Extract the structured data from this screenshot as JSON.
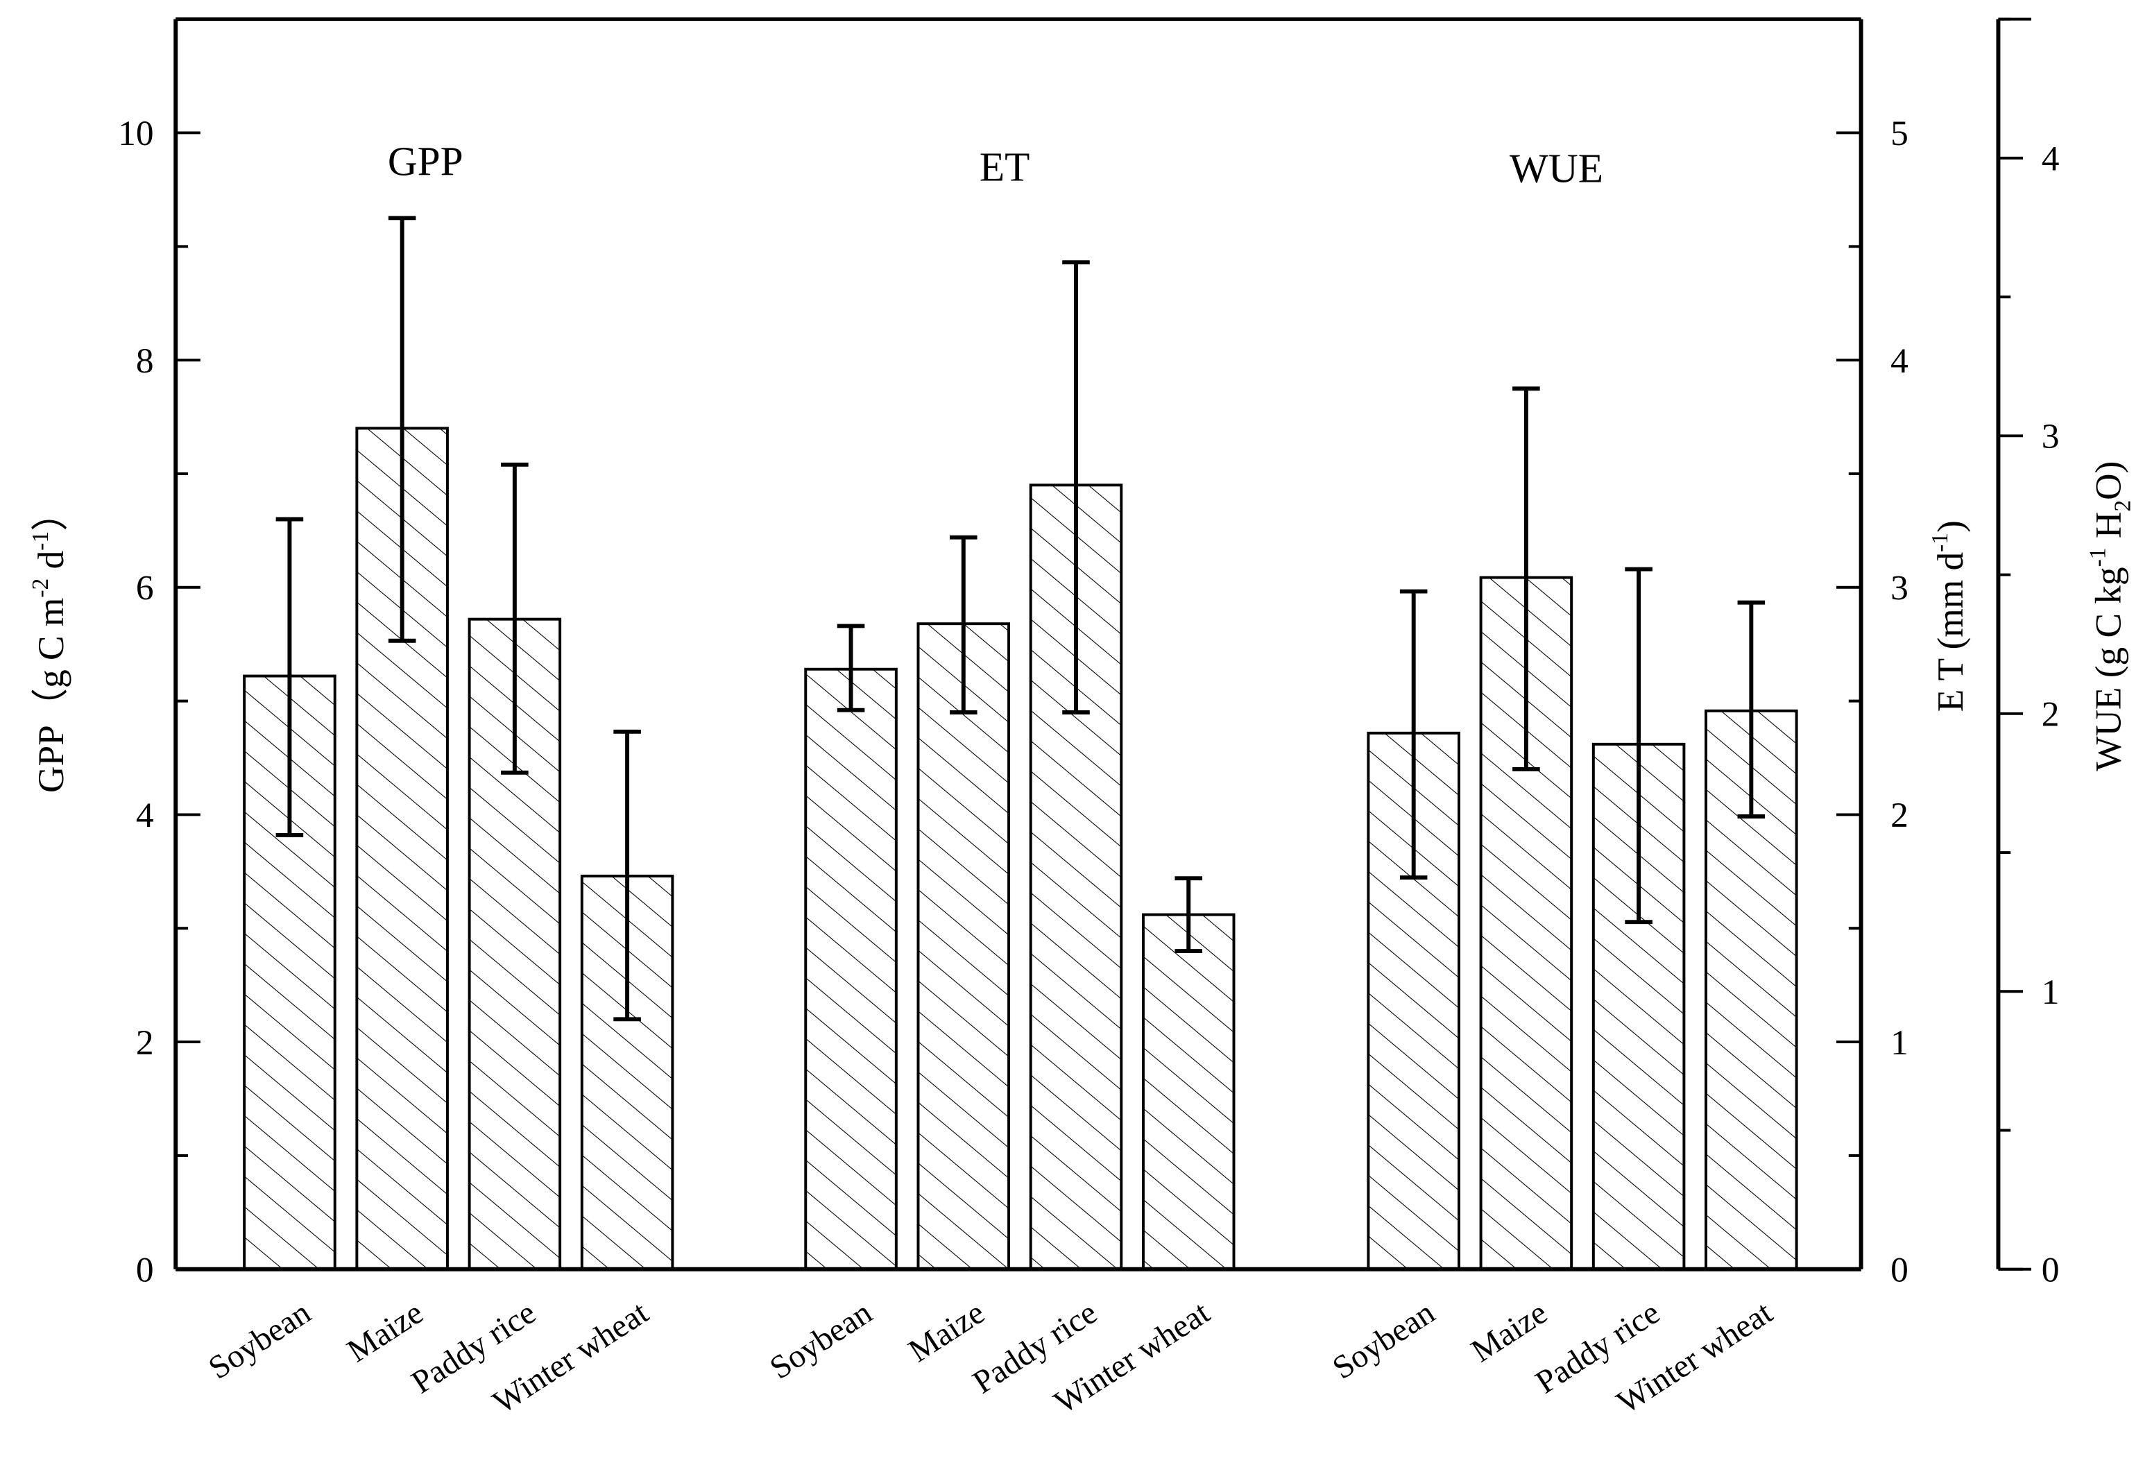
{
  "chart_data": {
    "type": "bar",
    "groups": [
      {
        "label": "GPP",
        "axis": "left",
        "categories": [
          "Soybean",
          "Maize",
          "Paddy rice",
          "Winter wheat"
        ],
        "values": [
          5.22,
          7.4,
          5.72,
          3.46
        ],
        "err_low": [
          3.82,
          5.53,
          4.37,
          2.2
        ],
        "err_high": [
          6.6,
          9.25,
          7.08,
          4.73
        ]
      },
      {
        "label": "ET",
        "axis": "right1",
        "categories": [
          "Soybean",
          "Maize",
          "Paddy rice",
          "Winter wheat"
        ],
        "values": [
          2.64,
          2.84,
          3.45,
          1.56
        ],
        "err_low": [
          2.46,
          2.45,
          2.45,
          1.4
        ],
        "err_high": [
          2.83,
          3.22,
          4.43,
          1.72
        ]
      },
      {
        "label": "WUE",
        "axis": "right2",
        "categories": [
          "Soybean",
          "Maize",
          "Paddy rice",
          "Winter wheat"
        ],
        "values": [
          1.93,
          2.49,
          1.89,
          2.01
        ],
        "err_low": [
          1.41,
          1.8,
          1.25,
          1.63
        ],
        "err_high": [
          2.44,
          3.17,
          2.52,
          2.4
        ]
      }
    ],
    "axes": {
      "left": {
        "label_main": "GPP（g C m",
        "sup1": "-2",
        "mid": " d",
        "sup2": "-1",
        "end": "）",
        "ylim": [
          0,
          11
        ],
        "ticks": [
          0,
          2,
          4,
          6,
          8,
          10
        ],
        "minor_step": 1
      },
      "right1": {
        "label_main": "E T (mm d",
        "sup1": "-1",
        "end": ")",
        "ylim": [
          0,
          5.5
        ],
        "ticks": [
          0,
          1,
          2,
          3,
          4,
          5
        ],
        "minor_step": 0.5
      },
      "right2": {
        "label_main": "WUE (g C kg",
        "sup1": "-1",
        "mid": " H",
        "sub": "2",
        "end": "O)",
        "ylim": [
          0,
          4.5
        ],
        "ticks": [
          0,
          1,
          2,
          3,
          4
        ],
        "minor_step": 0.5
      }
    },
    "bar_fill": "hatched",
    "grid": false,
    "colors": {
      "bar_edge": "#000000",
      "hatch": "#000000",
      "background": "#ffffff"
    }
  }
}
